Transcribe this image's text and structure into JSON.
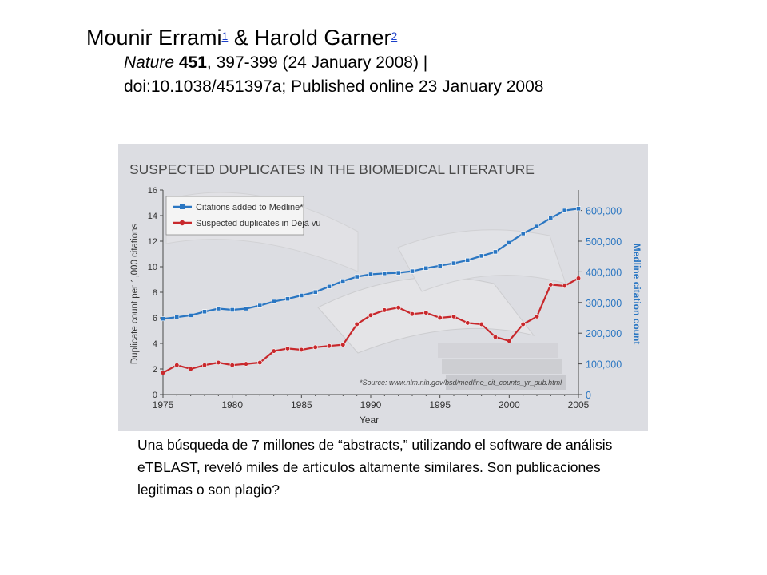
{
  "header": {
    "author1": "Mounir Errami",
    "author1_ref": "1",
    "amp": "&",
    "author2": "Harold Garner",
    "author2_ref": "2",
    "journal": "Nature",
    "volume": "451",
    "details": ", 397-399 (24 January 2008) |",
    "doi": "doi:10.1038/451397a; Published online 23 January 2008"
  },
  "caption": "Una búsqueda de 7 millones de “abstracts,” utilizando el software de análisis eTBLAST, reveló miles de artículos altamente similares. Son publicaciones legitimas o son plagio?",
  "colors": {
    "blue": "#2a76c2",
    "red": "#c8282c",
    "panel": "#dcdde2",
    "axis": "#4a4a4a"
  },
  "chart_data": {
    "type": "line",
    "title": "SUSPECTED DUPLICATES IN THE BIOMEDICAL LITERATURE",
    "xlabel": "Year",
    "ylabel": "Duplicate count per 1,000 citations",
    "y2label": "Medline citation count",
    "xlim": [
      1975,
      2005
    ],
    "ylim": [
      0,
      16
    ],
    "y2lim": [
      0,
      666667
    ],
    "x_ticks": [
      "1975",
      "1980",
      "1985",
      "1990",
      "1995",
      "2000",
      "2005"
    ],
    "y_ticks": [
      "0",
      "2",
      "4",
      "6",
      "8",
      "10",
      "12",
      "14",
      "16"
    ],
    "y2_ticks": [
      "0",
      "100,000",
      "200,000",
      "300,000",
      "400,000",
      "500,000",
      "600,000"
    ],
    "source_note": "*Source: www.nlm.nih.gov/bsd/medline_cit_counts_yr_pub.html",
    "legend_position": "top-left",
    "series": [
      {
        "name": "Citations added to Medline*",
        "axis": "right",
        "color": "#2a76c2",
        "x": [
          1975,
          1976,
          1977,
          1978,
          1979,
          1980,
          1981,
          1982,
          1983,
          1984,
          1985,
          1986,
          1987,
          1988,
          1989,
          1990,
          1991,
          1992,
          1993,
          1994,
          1995,
          1996,
          1997,
          1998,
          1999,
          2000,
          2001,
          2002,
          2003,
          2004,
          2005
        ],
        "values": [
          247000,
          252000,
          258000,
          270000,
          280000,
          276000,
          280000,
          290000,
          303000,
          312000,
          323000,
          334000,
          352000,
          370000,
          384000,
          392000,
          395000,
          397000,
          402000,
          412000,
          420000,
          428000,
          438000,
          452000,
          465000,
          495000,
          525000,
          548000,
          575000,
          600000,
          606000
        ]
      },
      {
        "name": "Suspected duplicates in Déjà vu",
        "axis": "left",
        "color": "#c8282c",
        "x": [
          1975,
          1976,
          1977,
          1978,
          1979,
          1980,
          1981,
          1982,
          1983,
          1984,
          1985,
          1986,
          1987,
          1988,
          1989,
          1990,
          1991,
          1992,
          1993,
          1994,
          1995,
          1996,
          1997,
          1998,
          1999,
          2000,
          2001,
          2002,
          2003,
          2004,
          2005
        ],
        "values": [
          1.7,
          2.3,
          2.0,
          2.3,
          2.5,
          2.3,
          2.4,
          2.5,
          3.4,
          3.6,
          3.5,
          3.7,
          3.8,
          3.9,
          5.5,
          6.2,
          6.6,
          6.8,
          6.3,
          6.4,
          6.0,
          6.1,
          5.6,
          5.5,
          4.5,
          4.2,
          5.5,
          6.1,
          8.6,
          8.5,
          9.1
        ]
      }
    ]
  }
}
